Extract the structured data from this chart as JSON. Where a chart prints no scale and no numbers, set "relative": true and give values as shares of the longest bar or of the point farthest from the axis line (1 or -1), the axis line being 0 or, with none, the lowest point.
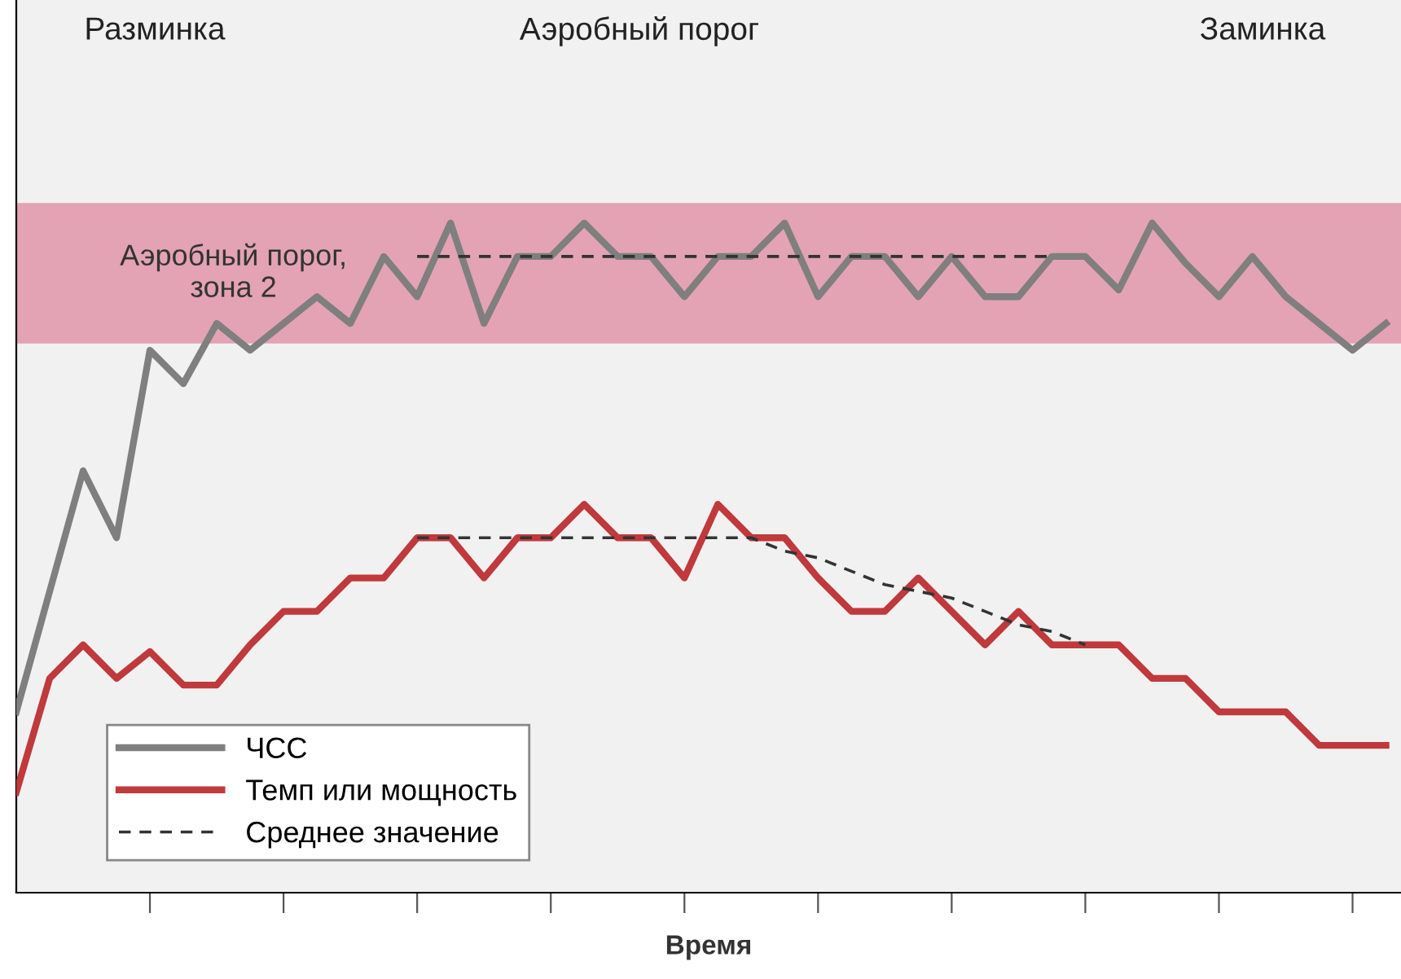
{
  "chart_data": {
    "type": "line",
    "relative": true,
    "xlabel": "Время",
    "categories": [
      null,
      null,
      null,
      null,
      null,
      null,
      null,
      null,
      null,
      null,
      null,
      null,
      null,
      null,
      null,
      null,
      null,
      null,
      null,
      null,
      null,
      null,
      null,
      null,
      null,
      null,
      null,
      null,
      null,
      null,
      null,
      null,
      null,
      null,
      null,
      null,
      null,
      null,
      null,
      null,
      null,
      null
    ],
    "series": [
      {
        "name": "ЧСС",
        "color": "#7f7f7f",
        "values": [
          0.27,
          0.45,
          0.63,
          0.53,
          0.81,
          0.76,
          0.85,
          0.81,
          0.85,
          0.89,
          0.85,
          0.95,
          0.89,
          1.0,
          0.85,
          0.95,
          0.95,
          1.0,
          0.95,
          0.95,
          0.89,
          0.95,
          0.95,
          1.0,
          0.89,
          0.95,
          0.95,
          0.89,
          0.95,
          0.89,
          0.89,
          0.95,
          0.95,
          0.9,
          1.0,
          0.94,
          0.89,
          0.95,
          0.89,
          0.85,
          0.81,
          0.85
        ]
      },
      {
        "name": "Темп или мощность",
        "color": "#c0393b",
        "values": [
          0.15,
          0.32,
          0.37,
          0.32,
          0.36,
          0.31,
          0.31,
          0.37,
          0.42,
          0.42,
          0.47,
          0.47,
          0.53,
          0.53,
          0.47,
          0.53,
          0.53,
          0.58,
          0.53,
          0.53,
          0.47,
          0.58,
          0.53,
          0.53,
          0.47,
          0.42,
          0.42,
          0.47,
          0.42,
          0.37,
          0.42,
          0.37,
          0.37,
          0.37,
          0.32,
          0.32,
          0.27,
          0.27,
          0.27,
          0.22,
          0.22,
          0.22
        ]
      },
      {
        "name": "Среднее значение",
        "color": "#333333",
        "line_style": "dashed",
        "values": [
          null,
          null,
          null,
          null,
          null,
          null,
          null,
          null,
          null,
          null,
          null,
          null,
          0.95,
          0.95,
          0.95,
          0.95,
          0.95,
          0.95,
          0.95,
          0.95,
          0.95,
          0.95,
          0.95,
          0.95,
          0.95,
          0.95,
          0.95,
          0.95,
          0.95,
          0.95,
          0.95,
          0.95,
          null,
          null,
          null,
          null,
          null,
          null,
          null,
          null,
          null,
          null
        ]
      },
      {
        "color": "#333333",
        "line_style": "dashed",
        "values": [
          null,
          null,
          null,
          null,
          null,
          null,
          null,
          null,
          null,
          null,
          null,
          null,
          0.53,
          0.53,
          0.53,
          0.53,
          0.53,
          0.53,
          0.53,
          0.53,
          0.53,
          0.53,
          0.53,
          0.51,
          0.5,
          0.48,
          0.46,
          0.45,
          0.44,
          0.42,
          0.4,
          0.39,
          0.37,
          null,
          null,
          null,
          null,
          null,
          null,
          null,
          null,
          null
        ]
      }
    ],
    "bands": [
      {
        "axis": "y",
        "from": 0.82,
        "to": 1.03,
        "label": "Аэробный порог,\nзона 2",
        "color": "#e3a3b4"
      }
    ],
    "annotations": [
      "Разминка",
      "Аэробный порог",
      "Заминка"
    ],
    "legend": "bottom left",
    "grid": false,
    "line_style": "solid",
    "marker": "none"
  }
}
